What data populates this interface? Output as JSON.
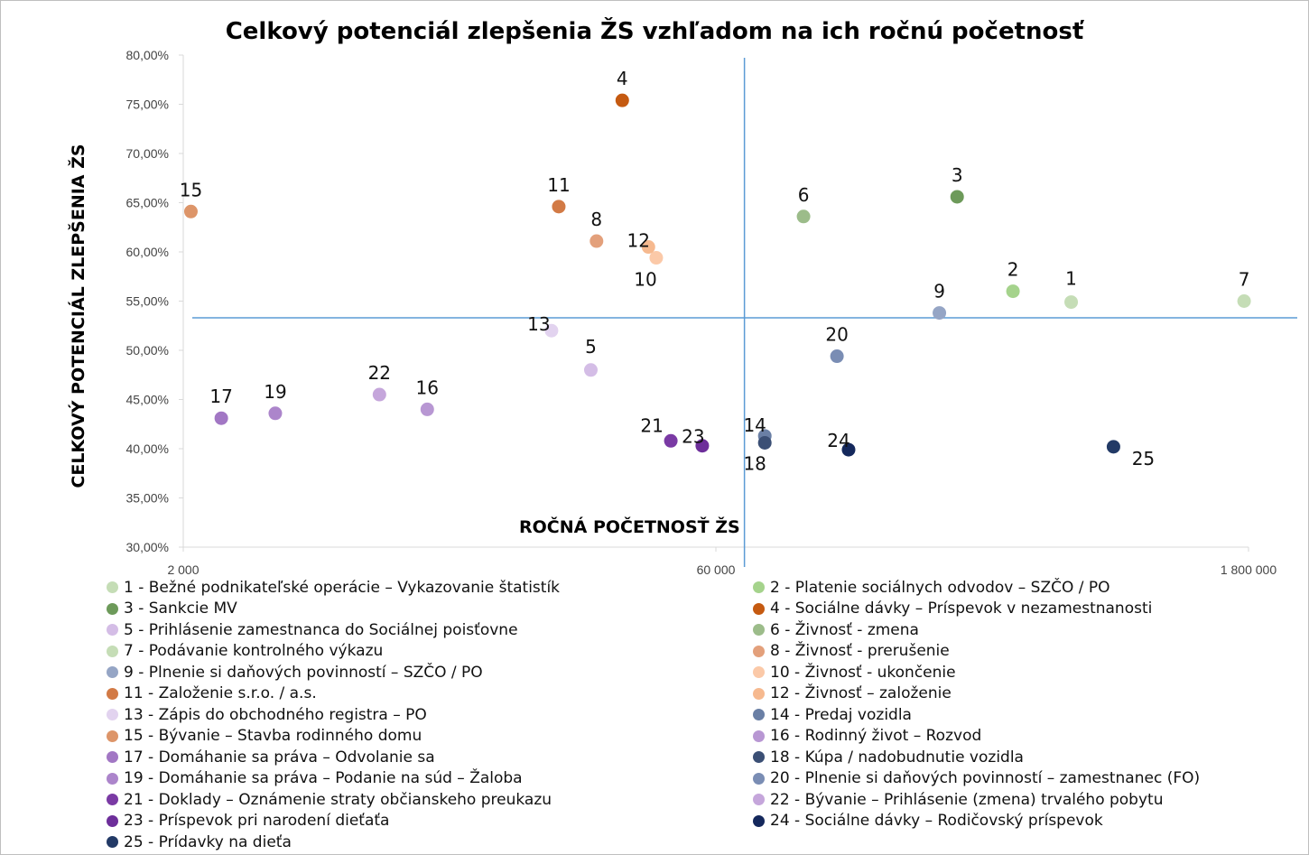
{
  "chart_data": {
    "type": "scatter",
    "title": "Celkový potenciál zlepšenia ŽS vzhľadom na ich ročnú početnosť",
    "xlabel": "ROČNÁ POČETNOSŤ ŽS",
    "ylabel": "CELKOVÝ POTENCIÁL ZLEPŠENIA ŽS",
    "x_scale": "log",
    "xlim": [
      2000,
      1800000
    ],
    "ylim": [
      30,
      80
    ],
    "x_ticks": [
      2000,
      60000,
      1800000
    ],
    "x_tick_labels": [
      "2 000",
      "60 000",
      "1 800 000"
    ],
    "y_ticks": [
      30,
      35,
      40,
      45,
      50,
      55,
      60,
      65,
      70,
      75,
      80
    ],
    "y_tick_labels": [
      "30,00%",
      "35,00%",
      "40,00%",
      "45,00%",
      "50,00%",
      "55,00%",
      "60,00%",
      "65,00%",
      "70,00%",
      "75,00%",
      "80,00%"
    ],
    "reference_lines": {
      "x": 72000,
      "y": 53.3
    },
    "legend_position": "bottom",
    "grid": false,
    "points": [
      {
        "id": "1",
        "legend": "1 - Bežné podnikateľské operácie – Vykazovanie štatistík",
        "x": 580000,
        "y": 54.9,
        "color": "#c5ddb6"
      },
      {
        "id": "2",
        "legend": "2 - Platenie sociálnych odvodov – SZČO / PO",
        "x": 400000,
        "y": 56.0,
        "color": "#a5d38c"
      },
      {
        "id": "3",
        "legend": "3 - Sankcie MV",
        "x": 280000,
        "y": 65.6,
        "color": "#6d9a5a"
      },
      {
        "id": "4",
        "legend": "4 - Sociálne dávky – Príspevok v nezamestnanosti",
        "x": 33000,
        "y": 75.4,
        "color": "#c55a11"
      },
      {
        "id": "5",
        "legend": "5 - Prihlásenie zamestnanca do Sociálnej poisťovne",
        "x": 27000,
        "y": 48.0,
        "color": "#d4bde6"
      },
      {
        "id": "6",
        "legend": "6 - Živnosť - zmena",
        "x": 105000,
        "y": 63.6,
        "color": "#9cbc8a"
      },
      {
        "id": "7",
        "legend": "7 - Podávanie kontrolného výkazu",
        "x": 1750000,
        "y": 55.0,
        "color": "#c5ddb6"
      },
      {
        "id": "8",
        "legend": "8 - Živnosť - prerušenie",
        "x": 28000,
        "y": 61.1,
        "color": "#e3a07b"
      },
      {
        "id": "9",
        "legend": "9 - Plnenie si daňových povinností – SZČO / PO",
        "x": 250000,
        "y": 53.8,
        "color": "#95a5c5"
      },
      {
        "id": "10",
        "legend": "10 - Živnosť - ukončenie",
        "x": 41000,
        "y": 59.4,
        "color": "#fbc9a8"
      },
      {
        "id": "11",
        "legend": "11 - Založenie s.r.o. / a.s.",
        "x": 22000,
        "y": 64.6,
        "color": "#d27a45"
      },
      {
        "id": "12",
        "legend": "12 - Živnosť – založenie",
        "x": 39000,
        "y": 60.5,
        "color": "#f6b98f"
      },
      {
        "id": "13",
        "legend": "13 - Zápis do obchodného registra – PO",
        "x": 21000,
        "y": 52.0,
        "color": "#e2d3ef"
      },
      {
        "id": "14",
        "legend": "14 - Predaj vozidla",
        "x": 82000,
        "y": 41.3,
        "color": "#6a7fa5"
      },
      {
        "id": "15",
        "legend": "15 - Bývanie – Stavba rodinného domu",
        "x": 2100,
        "y": 64.1,
        "color": "#dd9569"
      },
      {
        "id": "16",
        "legend": "16 - Rodinný život – Rozvod",
        "x": 9500,
        "y": 44.0,
        "color": "#b897d3"
      },
      {
        "id": "17",
        "legend": "17 - Domáhanie sa práva – Odvolanie sa",
        "x": 2550,
        "y": 43.1,
        "color": "#a277c4"
      },
      {
        "id": "18",
        "legend": "18 - Kúpa / nadobudnutie vozidla",
        "x": 82000,
        "y": 40.6,
        "color": "#3b4f75"
      },
      {
        "id": "19",
        "legend": "19 - Domáhanie sa práva – Podanie na súd – Žaloba",
        "x": 3600,
        "y": 43.6,
        "color": "#ac85cb"
      },
      {
        "id": "20",
        "legend": "20 - Plnenie si daňových povinností – zamestnanec (FO)",
        "x": 130000,
        "y": 49.4,
        "color": "#7a8db4"
      },
      {
        "id": "21",
        "legend": "21 - Doklady – Oznámenie straty občianskeho preukazu",
        "x": 45000,
        "y": 40.8,
        "color": "#7a3aa4"
      },
      {
        "id": "22",
        "legend": "22 - Bývanie – Prihlásenie (zmena) trvalého pobytu",
        "x": 7000,
        "y": 45.5,
        "color": "#c5a6db"
      },
      {
        "id": "23",
        "legend": "23 - Príspevok pri narodení dieťaťa",
        "x": 55000,
        "y": 40.3,
        "color": "#6d2e9a"
      },
      {
        "id": "24",
        "legend": "24 - Sociálne dávky – Rodičovský príspevok",
        "x": 140000,
        "y": 39.9,
        "color": "#14285c"
      },
      {
        "id": "25",
        "legend": "25 - Prídavky na dieťa",
        "x": 760000,
        "y": 40.2,
        "color": "#223a66"
      }
    ]
  }
}
